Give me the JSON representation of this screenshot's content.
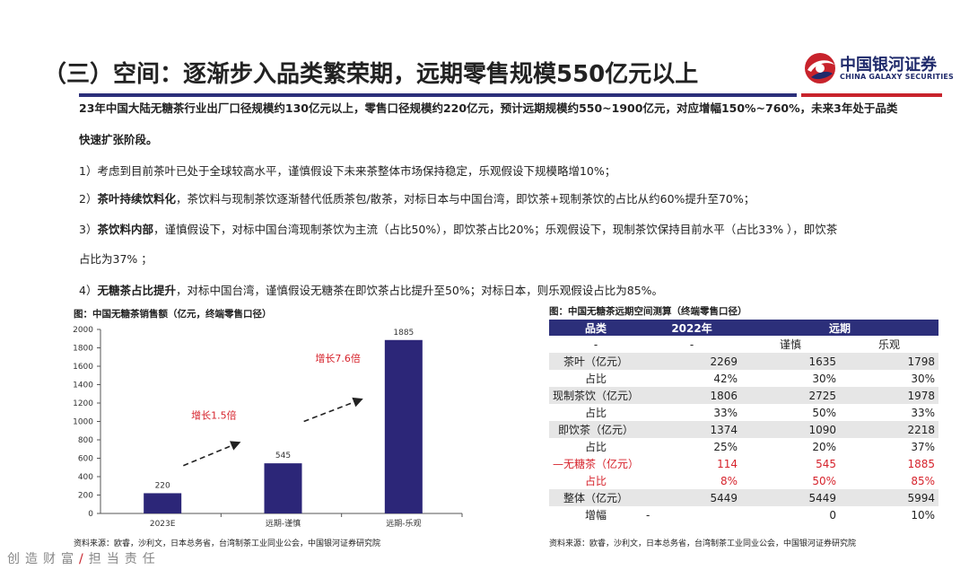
{
  "header": {
    "title": "（三）空间：逐渐步入品类繁荣期，远期零售规模550亿元以上",
    "logo_cn": "中国银河证券",
    "logo_en": "CHINA GALAXY SECURITIES"
  },
  "body": {
    "p1_line1": "23年中国大陆无糖茶行业出厂口径规模约130亿元以上，零售口径规模约220亿元，预计远期规模约550~1900亿元，对应增幅150%~760%，未来3年处于品类",
    "p1_line2": "快速扩张阶段。",
    "p2": "1）考虑到目前茶叶已处于全球较高水平，谨慎假设下未来茶整体市场保持稳定，乐观假设下规模略增10%；",
    "p3_prefix": "2）",
    "p3_bold": "茶叶持续饮料化",
    "p3_rest": "，茶饮料与现制茶饮逐渐替代低质茶包/散茶，对标日本与中国台湾，即饮茶+现制茶饮的占比从约60%提升至70%；",
    "p4_prefix": "3）",
    "p4_bold": "茶饮料内部",
    "p4_rest": "，谨慎假设下，对标中国台湾现制茶饮为主流（占比50%），即饮茶占比20%；乐观假设下，现制茶饮保持目前水平（占比33%   ），即饮茶",
    "p4_line2": "占比为37%  ；",
    "p5_prefix": "4）",
    "p5_bold": "无糖茶占比提升",
    "p5_rest": "，对标中国台湾，谨慎假设无糖茶在即饮茶占比提升至50%；对标日本，则乐观假设占比为85%。"
  },
  "chart_caption": "图：中国无糖茶销售额（亿元，终端零售口径）",
  "chart_data": {
    "type": "bar",
    "categories": [
      "2023E",
      "远期-谨慎",
      "远期-乐观"
    ],
    "values": [
      220,
      545,
      1885
    ],
    "ylim": [
      0,
      2000
    ],
    "yticks": [
      "0",
      "200",
      "400",
      "600",
      "800",
      "1000",
      "1200",
      "1400",
      "1600",
      "1800",
      "2000"
    ],
    "bar_color": "#2c2678",
    "data_labels": [
      "220",
      "545",
      "1885"
    ],
    "annotations": [
      "增长1.5倍",
      "增长7.6倍"
    ],
    "annotation_color": "#d6232c",
    "grid": false
  },
  "chart_source": "资料来源：欧睿，沙利文，日本总务省，台湾制茶工业同业公会，中国银河证券研究院",
  "table": {
    "caption": "图：中国无糖茶远期空间测算（终端零售口径）",
    "headers": [
      "品类",
      "2022年",
      "远期"
    ],
    "subheaders": [
      "-",
      "-",
      "谨慎",
      "乐观"
    ],
    "rows": [
      {
        "label": "茶叶（亿元）",
        "v2022": "2269",
        "cautious": "1635",
        "optimistic": "1798",
        "style": "shade"
      },
      {
        "label": "占比",
        "v2022": "42%",
        "cautious": "30%",
        "optimistic": "30%",
        "style": "plain"
      },
      {
        "label": "现制茶饮（亿元）",
        "v2022": "1806",
        "cautious": "2725",
        "optimistic": "1978",
        "style": "shade"
      },
      {
        "label": "占比",
        "v2022": "33%",
        "cautious": "50%",
        "optimistic": "33%",
        "style": "plain"
      },
      {
        "label": "即饮茶（亿元）",
        "v2022": "1374",
        "cautious": "1090",
        "optimistic": "2218",
        "style": "shade"
      },
      {
        "label": "占比",
        "v2022": "25%",
        "cautious": "20%",
        "optimistic": "37%",
        "style": "plain"
      },
      {
        "label": "—无糖茶（亿元）",
        "v2022": "114",
        "cautious": "545",
        "optimistic": "1885",
        "style": "red"
      },
      {
        "label": "占比",
        "v2022": "8%",
        "cautious": "50%",
        "optimistic": "85%",
        "style": "red"
      },
      {
        "label": "整体（亿元）",
        "v2022": "5449",
        "cautious": "5449",
        "optimistic": "5994",
        "style": "shade"
      },
      {
        "label": "增幅",
        "v2022": "-",
        "cautious": "0",
        "optimistic": "10%",
        "style": "plain"
      }
    ],
    "source": "资料来源：欧睿，沙利文，日本总务省，台湾制茶工业同业公会，中国银河证券研究院"
  },
  "footer": {
    "left": "创造财富",
    "slash": "/",
    "right": "担当责任"
  },
  "colors": {
    "navy": "#2c2f7a",
    "red": "#c8232c"
  }
}
